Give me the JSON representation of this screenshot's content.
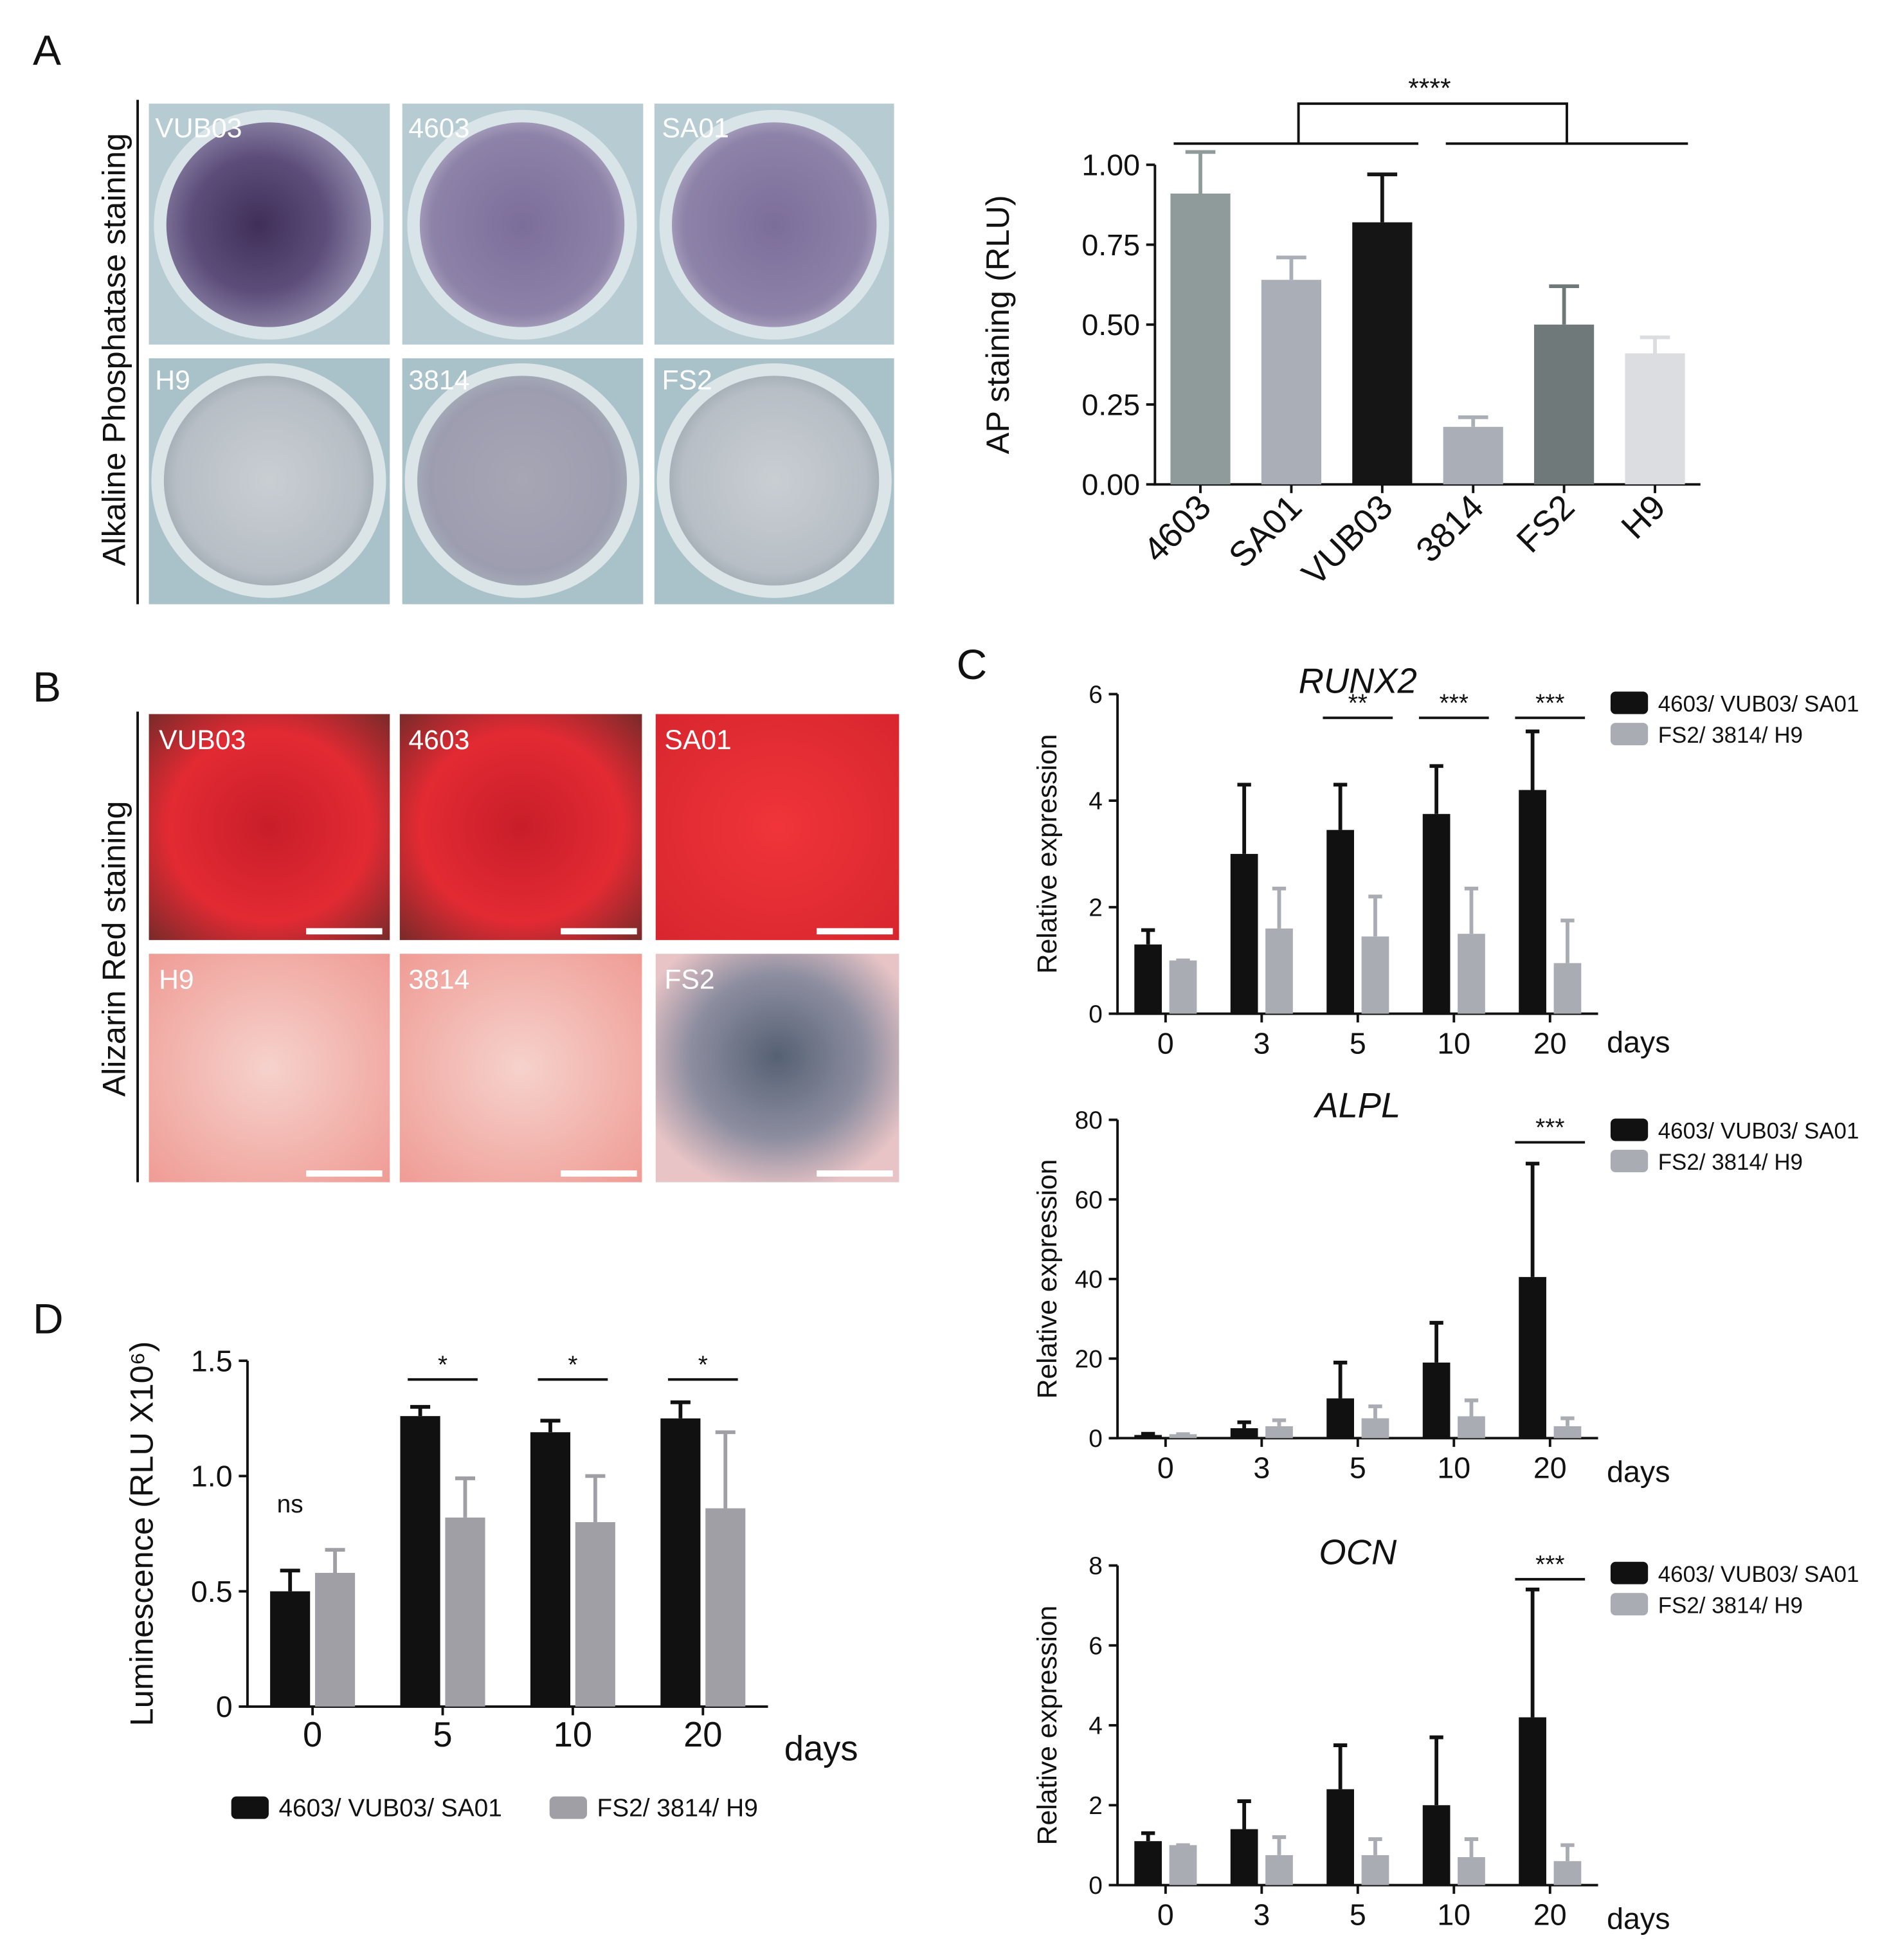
{
  "panel_labels": [
    "A",
    "B",
    "C",
    "D"
  ],
  "panel_a_images": {
    "side_label": "Alkaline Phosphatase staining",
    "labels": [
      "VUB03",
      "4603",
      "SA01",
      "H9",
      "3814",
      "FS2"
    ]
  },
  "panel_b_images": {
    "side_label": "Alizarin Red staining",
    "labels": [
      "VUB03",
      "4603",
      "SA01",
      "H9",
      "3814",
      "FS2"
    ]
  },
  "chart_data": [
    {
      "type": "bar",
      "ylabel": "AP staining (RLU)",
      "categories": [
        "4603",
        "SA01",
        "VUB03",
        "3814",
        "FS2",
        "H9"
      ],
      "values": [
        0.91,
        0.64,
        0.82,
        0.18,
        0.5,
        0.41
      ],
      "errors": [
        0.13,
        0.07,
        0.15,
        0.03,
        0.12,
        0.05
      ],
      "colors": [
        "#8f9b9b",
        "#aaaeb6",
        "#151515",
        "#aaaeb6",
        "#6f7979",
        "#dcdde0"
      ],
      "ylim": [
        0,
        1
      ],
      "yticks": [
        {
          "value": 0,
          "label": "0.00"
        },
        {
          "value": 0.25,
          "label": "0.25"
        },
        {
          "value": 0.5,
          "label": "0.50"
        },
        {
          "value": 0.75,
          "label": "0.75"
        },
        {
          "value": 1,
          "label": "1.00"
        }
      ],
      "significance": "****"
    },
    {
      "type": "bar",
      "title": "RUNX2",
      "ylabel": "Relative expression",
      "xlabel": "days",
      "categories": [
        "0",
        "3",
        "5",
        "10",
        "20"
      ],
      "series": [
        {
          "name": "4603/ VUB03/ SA01",
          "color": "#111111",
          "values": [
            1.3,
            3.0,
            3.45,
            3.75,
            4.2
          ],
          "errors": [
            0.27,
            1.3,
            0.85,
            0.9,
            1.1
          ]
        },
        {
          "name": "FS2/ 3814/ H9",
          "color": "#a9acb2",
          "values": [
            1.0,
            1.6,
            1.45,
            1.5,
            0.95
          ],
          "errors": [
            0,
            0.75,
            0.75,
            0.85,
            0.8
          ]
        }
      ],
      "annotations": [
        null,
        null,
        "**",
        "***",
        "***"
      ],
      "ylim": [
        0,
        6
      ],
      "yticks": [
        0,
        2,
        4,
        6
      ]
    },
    {
      "type": "bar",
      "title": "ALPL",
      "ylabel": "Relative expression",
      "xlabel": "days",
      "categories": [
        "0",
        "3",
        "5",
        "10",
        "20"
      ],
      "series": [
        {
          "name": "4603/ VUB03/ SA01",
          "color": "#111111",
          "values": [
            0.8,
            2.5,
            10,
            19,
            40.5
          ],
          "errors": [
            0.3,
            1.5,
            9,
            10,
            28.5
          ]
        },
        {
          "name": "FS2/ 3814/ H9",
          "color": "#a9acb2",
          "values": [
            1,
            3,
            5,
            5.5,
            3
          ],
          "errors": [
            0,
            1.5,
            3,
            4,
            2
          ]
        }
      ],
      "annotations": [
        null,
        null,
        null,
        null,
        "***"
      ],
      "ylim": [
        0,
        80
      ],
      "yticks": [
        0,
        20,
        40,
        60,
        80
      ]
    },
    {
      "type": "bar",
      "title": "OCN",
      "ylabel": "Relative expression",
      "xlabel": "days",
      "categories": [
        "0",
        "3",
        "5",
        "10",
        "20"
      ],
      "series": [
        {
          "name": "4603/ VUB03/ SA01",
          "color": "#111111",
          "values": [
            1.1,
            1.4,
            2.4,
            2.0,
            4.2
          ],
          "errors": [
            0.2,
            0.7,
            1.1,
            1.7,
            3.2
          ]
        },
        {
          "name": "FS2/ 3814/ H9",
          "color": "#a9acb2",
          "values": [
            1,
            0.75,
            0.75,
            0.7,
            0.6
          ],
          "errors": [
            0,
            0.45,
            0.4,
            0.45,
            0.4
          ]
        }
      ],
      "annotations": [
        null,
        null,
        null,
        null,
        "***"
      ],
      "ylim": [
        0,
        8
      ],
      "yticks": [
        0,
        2,
        4,
        6,
        8
      ]
    },
    {
      "type": "bar",
      "ylabel": "Luminescence (RLU X10⁶)",
      "xlabel": "days",
      "categories": [
        "0",
        "5",
        "10",
        "20"
      ],
      "series": [
        {
          "name": "4603/ VUB03/ SA01",
          "color": "#111111",
          "values": [
            0.5,
            1.26,
            1.19,
            1.25
          ],
          "errors": [
            0.09,
            0.04,
            0.05,
            0.07
          ]
        },
        {
          "name": "FS2/ 3814/ H9",
          "color": "#a19fa6",
          "values": [
            0.58,
            0.82,
            0.8,
            0.86
          ],
          "errors": [
            0.1,
            0.17,
            0.2,
            0.33
          ]
        }
      ],
      "annotations": [
        "ns",
        "*",
        "*",
        "*"
      ],
      "ylim": [
        0,
        1.5
      ],
      "yticks": [
        0,
        0.5,
        {
          "value": 1,
          "label": "1.0"
        },
        1.5
      ]
    }
  ]
}
